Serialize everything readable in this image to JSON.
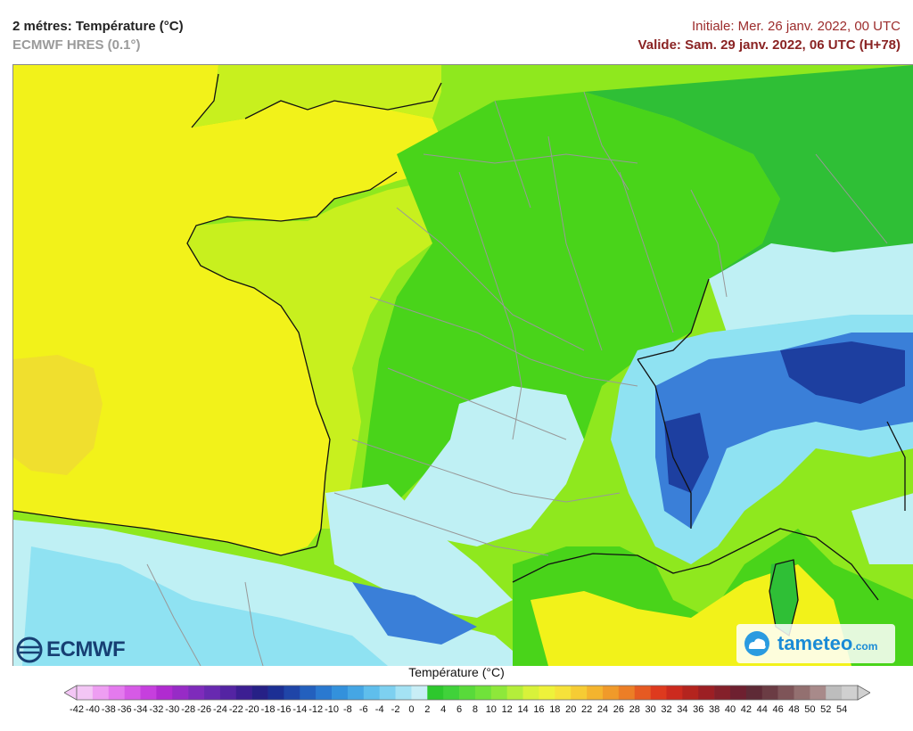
{
  "header": {
    "title": "2 métres: Température (°C)",
    "subtitle": "ECMWF HRES (0.1°)",
    "init_label": "Initiale: Mer. 26 janv. 2022, 00 UTC",
    "valid_label": "Valide: Sam. 29 janv. 2022, 06 UTC (H+78)"
  },
  "map": {
    "region": "France",
    "colors": {
      "sea_yellow": "#f2f21a",
      "yellow_green": "#c8f01e",
      "light_green": "#8fe81e",
      "green": "#49d41a",
      "dark_green": "#2fbf36",
      "cyan_light": "#bff0f4",
      "cyan": "#8fe2f2",
      "blue": "#3a7fd8",
      "dark_blue": "#1d3fa0",
      "borders": "#999999",
      "coast": "#111111"
    }
  },
  "logos": {
    "ecmwf": "ECMWF",
    "tameteo": "tameteo",
    "tameteo_domain": ".com"
  },
  "legend": {
    "title": "Température (°C)",
    "ticks": [
      -42,
      -40,
      -38,
      -36,
      -34,
      -32,
      -30,
      -28,
      -26,
      -24,
      -22,
      -20,
      -18,
      -16,
      -14,
      -12,
      -10,
      -8,
      -6,
      -4,
      -2,
      0,
      2,
      4,
      6,
      8,
      10,
      12,
      14,
      16,
      18,
      20,
      22,
      24,
      26,
      28,
      30,
      32,
      34,
      36,
      38,
      40,
      42,
      44,
      46,
      48,
      50,
      52,
      54
    ],
    "colors": [
      "#f3c6f5",
      "#ee9ef2",
      "#e47aee",
      "#d65ae6",
      "#c63fde",
      "#b02bd0",
      "#972bc6",
      "#7e2bbb",
      "#6829b0",
      "#5424a3",
      "#3c1e92",
      "#262086",
      "#1c2f94",
      "#1f45a8",
      "#2360be",
      "#2a79d0",
      "#3391dc",
      "#45a6e4",
      "#5fbeec",
      "#7dd0f0",
      "#a4e2f4",
      "#c8eef6",
      "#2dc82d",
      "#40d23a",
      "#58da3a",
      "#70e23a",
      "#8ee83a",
      "#b4ee3a",
      "#d8f23a",
      "#eef23a",
      "#f6e23a",
      "#f6cc34",
      "#f4b42e",
      "#f09a2a",
      "#ec7e26",
      "#e65a22",
      "#de3a1e",
      "#cc2a1e",
      "#b4241e",
      "#9c1f24",
      "#84202a",
      "#6e2030",
      "#5e2a36",
      "#6b3c44",
      "#7e5458",
      "#937070",
      "#a88a8a",
      "#bdbdbd",
      "#d0d0d0"
    ]
  }
}
